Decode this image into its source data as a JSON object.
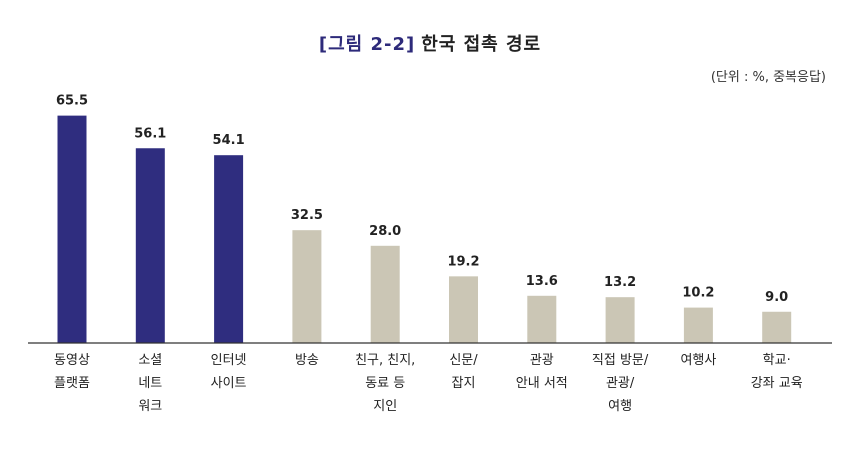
{
  "title": {
    "figure_no": "[그림 2-2]",
    "text": "한국 접촉 경로"
  },
  "unit_note": "(단위 : %, 중복응답)",
  "chart_data": {
    "type": "bar",
    "title": "[그림 2-2] 한국 접촉 경로",
    "xlabel": "",
    "ylabel": "",
    "ylim": [
      0,
      70
    ],
    "grid": false,
    "legend": "none",
    "categories": [
      [
        "동영상",
        "플랫폼"
      ],
      [
        "소셜",
        "네트",
        "워크"
      ],
      [
        "인터넷",
        "사이트"
      ],
      [
        "방송"
      ],
      [
        "친구, 친지,",
        "동료 등",
        "지인"
      ],
      [
        "신문/",
        "잡지"
      ],
      [
        "관광",
        "안내 서적"
      ],
      [
        "직접 방문/",
        "관광/",
        "여행"
      ],
      [
        "여행사"
      ],
      [
        "학교·",
        "강좌 교육"
      ]
    ],
    "values": [
      65.5,
      56.1,
      54.1,
      32.5,
      28.0,
      19.2,
      13.6,
      13.2,
      10.2,
      9.0
    ],
    "value_labels": [
      "65.5",
      "56.1",
      "54.1",
      "32.5",
      "28.0",
      "19.2",
      "13.6",
      "13.2",
      "10.2",
      "9.0"
    ],
    "highlight_count": 3,
    "colors": {
      "highlight": "#2f2d7f",
      "normal": "#cbc6b5",
      "axis": "#333333"
    }
  }
}
